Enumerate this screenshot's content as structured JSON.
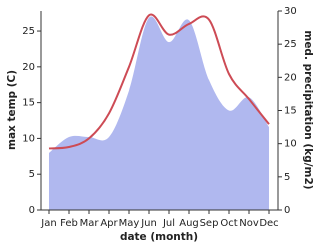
{
  "chart_data": {
    "type": "line-area",
    "categories": [
      "Jan",
      "Feb",
      "Mar",
      "Apr",
      "May",
      "Jun",
      "Jul",
      "Aug",
      "Sep",
      "Oct",
      "Nov",
      "Dec"
    ],
    "x_label": "date (month)",
    "y_label": "max temp (C)",
    "y2_label": "med. precipitation (kg/m2)",
    "series": [
      {
        "name": "max temp",
        "color": "#cd4b55",
        "values": [
          8.6,
          8.8,
          10,
          13.5,
          20,
          27.2,
          24.5,
          26,
          26.6,
          19,
          15.5,
          12
        ]
      },
      {
        "name": "med. precipitation",
        "color": "#b0b8ef",
        "axis": "y2",
        "values": [
          8.6,
          11,
          11,
          11,
          18,
          29,
          25.3,
          28.6,
          19.6,
          15,
          17,
          12.5
        ]
      }
    ],
    "ylim": [
      0,
      27.8
    ],
    "yticks": [
      0,
      5,
      10,
      15,
      20,
      25
    ],
    "y2lim": [
      0,
      30
    ],
    "y2ticks": [
      0,
      5,
      10,
      15,
      20,
      25,
      30
    ]
  }
}
